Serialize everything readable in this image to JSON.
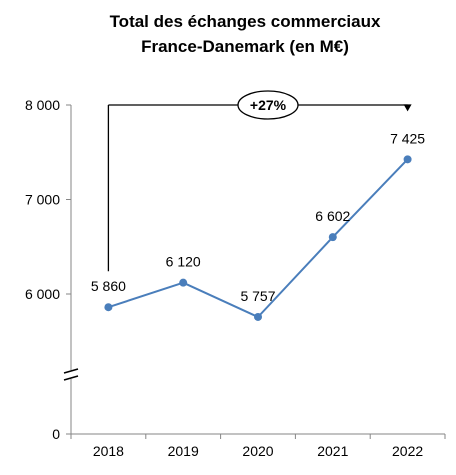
{
  "chart_data": {
    "type": "line",
    "title": [
      "Total des échanges commerciaux",
      "France-Danemark (en M€)"
    ],
    "xlabel": "",
    "ylabel": "",
    "categories": [
      "2018",
      "2019",
      "2020",
      "2021",
      "2022"
    ],
    "series": [
      {
        "values": [
          5860,
          6120,
          5757,
          6602,
          7425
        ],
        "labels": [
          "5 860",
          "6 120",
          "5 757",
          "6 602",
          "7 425"
        ],
        "color": "#4a7ebb"
      }
    ],
    "y_ticks": [
      {
        "value": 0,
        "label": "0"
      },
      {
        "value": 6000,
        "label": "6 000"
      },
      {
        "value": 7000,
        "label": "7 000"
      },
      {
        "value": 8000,
        "label": "8 000"
      }
    ],
    "ylim": [
      0,
      8000
    ],
    "y_axis_break": {
      "from": 0,
      "to": 6000
    },
    "grid": false,
    "legend": "none",
    "annotation": {
      "text": "+27%",
      "from_category": "2018",
      "to_category": "2022",
      "at_value": 8000
    },
    "axis_color": "#868686"
  }
}
